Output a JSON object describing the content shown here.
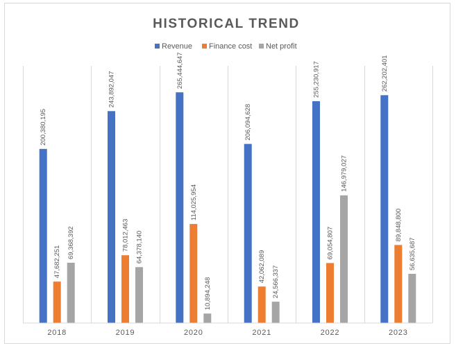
{
  "chart_data": {
    "type": "bar",
    "title": "HISTORICAL TREND",
    "categories": [
      "2018",
      "2019",
      "2020",
      "2021",
      "2022",
      "2023"
    ],
    "series": [
      {
        "name": "Revenue",
        "color": "#4472c4",
        "values": [
          200380195,
          243892047,
          265444647,
          206094628,
          255230917,
          262202401
        ],
        "labels": [
          "200,380,195",
          "243,892,047",
          "265,444,647",
          "206,094,628",
          "255,230,917",
          "262,202,401"
        ]
      },
      {
        "name": "Finance cost",
        "color": "#ed7d31",
        "values": [
          47682251,
          78012463,
          114025954,
          42062089,
          69054807,
          89848800
        ],
        "labels": [
          "47,682,251",
          "78,012,463",
          "114,025,954",
          "42,062,089",
          "69,054,807",
          "89,848,800"
        ]
      },
      {
        "name": "Net profit",
        "color": "#a5a5a5",
        "values": [
          69368392,
          64378140,
          10894248,
          24566337,
          146979027,
          56635687
        ],
        "labels": [
          "69,368,392",
          "64,378,140",
          "10,894,248",
          "24,566,337",
          "146,979,027",
          "56,635,687"
        ]
      }
    ],
    "ylim": [
      0,
      280000000
    ],
    "legend_position": "top",
    "grid": false,
    "category_separators": true
  }
}
